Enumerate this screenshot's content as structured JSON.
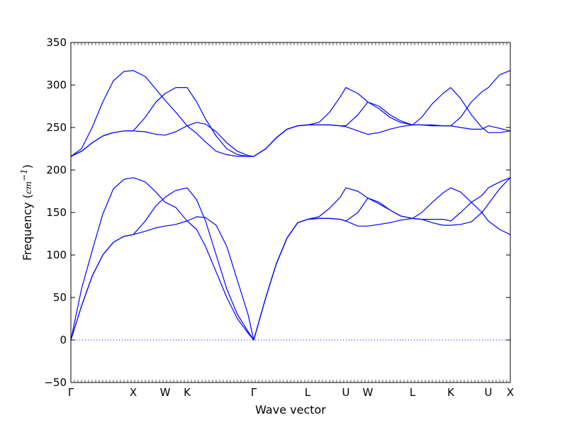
{
  "chart_data": {
    "type": "line",
    "title": "",
    "xlabel": "Wave vector",
    "ylabel_prefix": "Frequency (",
    "ylabel_unit": "cm",
    "ylabel_exp": "−1",
    "ylabel_suffix": ")",
    "ylim": [
      -50,
      350
    ],
    "yticks": [
      -50,
      0,
      50,
      100,
      150,
      200,
      250,
      300,
      350
    ],
    "ytick_labels": [
      "−50",
      "0",
      "50",
      "100",
      "150",
      "200",
      "250",
      "300",
      "350"
    ],
    "xlim": [
      0,
      12.4
    ],
    "high_symmetry_points": [
      {
        "label": "Γ",
        "x": 0
      },
      {
        "label": "X",
        "x": 1.76
      },
      {
        "label": "W",
        "x": 2.66
      },
      {
        "label": "K",
        "x": 3.28
      },
      {
        "label": "Γ",
        "x": 5.16
      },
      {
        "label": "L",
        "x": 6.68
      },
      {
        "label": "U",
        "x": 7.76
      },
      {
        "label": "W",
        "x": 8.38
      },
      {
        "label": "L",
        "x": 9.64
      },
      {
        "label": "K",
        "x": 10.72
      },
      {
        "label": "U",
        "x": 11.78
      },
      {
        "label": "X",
        "x": 12.4
      }
    ],
    "zero_line": {
      "y": 0,
      "style": "dotted",
      "color": "#0000ff"
    },
    "line_color": "#0000ff",
    "grid": false,
    "series": [
      {
        "x": [
          0,
          0.3,
          0.6,
          0.9,
          1.2,
          1.5,
          1.76,
          2.1,
          2.4,
          2.66,
          2.96,
          3.28,
          3.55,
          3.8,
          4.1,
          4.4,
          4.7,
          5.0,
          5.16,
          5.5,
          5.8,
          6.1,
          6.4,
          6.68,
          7.0,
          7.3,
          7.6,
          7.76,
          8.1,
          8.38,
          8.7,
          9.0,
          9.3,
          9.64,
          9.9,
          10.2,
          10.5,
          10.72,
          11.0,
          11.3,
          11.6,
          11.78,
          12.1,
          12.4
        ],
        "y": [
          0,
          60,
          105,
          148,
          178,
          189,
          191,
          186,
          174,
          162,
          156,
          140,
          130,
          110,
          80,
          50,
          25,
          8,
          0,
          50,
          90,
          120,
          138,
          142,
          143,
          143,
          142,
          140,
          134,
          134,
          136,
          138,
          141,
          143,
          142,
          138,
          135,
          135,
          136,
          139,
          150,
          160,
          178,
          191
        ]
      },
      {
        "x": [
          0,
          0.3,
          0.6,
          0.9,
          1.2,
          1.5,
          1.76,
          2.1,
          2.4,
          2.66,
          2.96,
          3.28,
          3.55,
          3.8,
          4.1,
          4.4,
          4.7,
          5.0,
          5.16,
          5.5,
          5.8,
          6.1,
          6.4,
          6.68,
          7.0,
          7.3,
          7.6,
          7.76,
          8.1,
          8.38,
          8.7,
          9.0,
          9.3,
          9.64,
          9.9,
          10.2,
          10.5,
          10.72,
          11.0,
          11.3,
          11.6,
          11.78,
          12.1,
          12.4
        ],
        "y": [
          0,
          40,
          75,
          100,
          115,
          122,
          124,
          140,
          158,
          168,
          176,
          179,
          165,
          140,
          100,
          60,
          30,
          10,
          0,
          50,
          90,
          120,
          138,
          142,
          145,
          155,
          168,
          179,
          175,
          167,
          160,
          153,
          146,
          143,
          150,
          162,
          173,
          179,
          174,
          162,
          150,
          140,
          130,
          124
        ]
      },
      {
        "x": [
          0,
          0.3,
          0.6,
          0.9,
          1.2,
          1.5,
          1.76,
          2.1,
          2.4,
          2.66,
          2.96,
          3.28,
          3.55,
          3.8,
          4.1,
          4.4,
          4.7,
          5.0,
          5.16,
          5.5,
          5.8,
          6.1,
          6.4,
          6.68,
          7.0,
          7.3,
          7.6,
          7.76,
          8.1,
          8.38,
          8.7,
          9.0,
          9.3,
          9.64,
          9.9,
          10.2,
          10.5,
          10.72,
          11.0,
          11.3,
          11.6,
          11.78,
          12.1,
          12.4
        ],
        "y": [
          0,
          40,
          75,
          100,
          115,
          122,
          124,
          128,
          132,
          134,
          136,
          140,
          145,
          144,
          135,
          110,
          70,
          30,
          0,
          50,
          90,
          120,
          138,
          142,
          143,
          143,
          142,
          140,
          150,
          167,
          162,
          153,
          146,
          143,
          142,
          142,
          142,
          140,
          150,
          162,
          170,
          179,
          186,
          191
        ]
      },
      {
        "x": [
          0,
          0.3,
          0.6,
          0.9,
          1.2,
          1.5,
          1.76,
          2.1,
          2.4,
          2.66,
          2.96,
          3.28,
          3.55,
          3.8,
          4.1,
          4.4,
          4.7,
          5.0,
          5.16,
          5.5,
          5.8,
          6.1,
          6.4,
          6.68,
          7.0,
          7.3,
          7.6,
          7.76,
          8.1,
          8.38,
          8.7,
          9.0,
          9.3,
          9.64,
          9.9,
          10.2,
          10.5,
          10.72,
          11.0,
          11.3,
          11.6,
          11.78,
          12.1,
          12.4
        ],
        "y": [
          216,
          225,
          250,
          280,
          305,
          316,
          317,
          310,
          295,
          282,
          268,
          252,
          243,
          233,
          222,
          218,
          216,
          216,
          216,
          225,
          238,
          248,
          252,
          253,
          253,
          253,
          252,
          251,
          246,
          242,
          244,
          248,
          251,
          253,
          253,
          253,
          252,
          252,
          250,
          248,
          248,
          252,
          249,
          246
        ]
      },
      {
        "x": [
          0,
          0.3,
          0.6,
          0.9,
          1.2,
          1.5,
          1.76,
          2.1,
          2.4,
          2.66,
          2.96,
          3.28,
          3.55,
          3.8,
          4.1,
          4.4,
          4.7,
          5.0,
          5.16,
          5.5,
          5.8,
          6.1,
          6.4,
          6.68,
          7.0,
          7.3,
          7.6,
          7.76,
          8.1,
          8.38,
          8.7,
          9.0,
          9.3,
          9.64,
          9.9,
          10.2,
          10.5,
          10.72,
          11.0,
          11.3,
          11.6,
          11.78,
          12.1,
          12.4
        ],
        "y": [
          216,
          222,
          232,
          240,
          244,
          246,
          246,
          262,
          280,
          290,
          297,
          297,
          280,
          260,
          240,
          225,
          218,
          216,
          216,
          225,
          238,
          248,
          252,
          253,
          256,
          268,
          286,
          297,
          290,
          280,
          272,
          262,
          256,
          253,
          262,
          278,
          290,
          297,
          284,
          265,
          250,
          244,
          244,
          246
        ]
      },
      {
        "x": [
          0,
          0.3,
          0.6,
          0.9,
          1.2,
          1.5,
          1.76,
          2.1,
          2.4,
          2.66,
          2.96,
          3.28,
          3.55,
          3.8,
          4.1,
          4.4,
          4.7,
          5.0,
          5.16,
          5.5,
          5.8,
          6.1,
          6.4,
          6.68,
          7.0,
          7.3,
          7.6,
          7.76,
          8.1,
          8.38,
          8.7,
          9.0,
          9.3,
          9.64,
          9.9,
          10.2,
          10.5,
          10.72,
          11.0,
          11.3,
          11.6,
          11.78,
          12.1,
          12.4
        ],
        "y": [
          216,
          222,
          232,
          240,
          244,
          246,
          246,
          245,
          242,
          241,
          245,
          252,
          256,
          254,
          245,
          232,
          222,
          217,
          216,
          225,
          238,
          248,
          252,
          253,
          253,
          253,
          252,
          252,
          265,
          280,
          275,
          265,
          258,
          253,
          253,
          252,
          252,
          252,
          262,
          280,
          292,
          297,
          312,
          317
        ]
      }
    ]
  }
}
